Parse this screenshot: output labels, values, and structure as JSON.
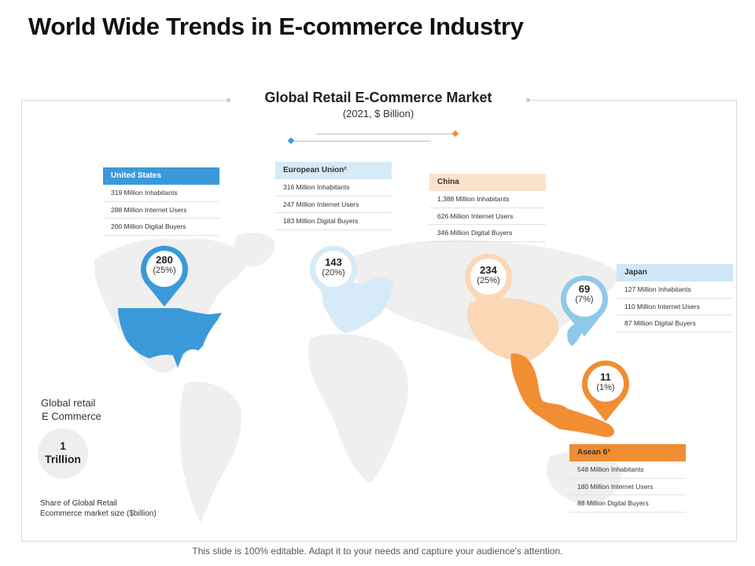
{
  "slide": {
    "title": "World Wide Trends in E-commerce Industry",
    "footer": "This slide is 100% editable. Adapt it to your needs and capture your audience's attention."
  },
  "chart": {
    "title": "Global Retail E-Commerce Market",
    "subtitle": "(2021, $ Billion)"
  },
  "colors": {
    "us_blue": "#3a9ad9",
    "eu_light_blue": "#d6eaf8",
    "china_peach": "#fbd7b5",
    "japan_blue": "#8ec8ea",
    "asean_orange": "#f18d33",
    "map_gray": "#efefef"
  },
  "regions": {
    "us": {
      "name": "United States",
      "inhabitants": "319 Million Inhabitants",
      "internet_users": "288 Million Internet Users",
      "digital_buyers": "200 Million Digital Buyers",
      "value": "280",
      "share": "(25%)"
    },
    "eu": {
      "name": "European Union²",
      "inhabitants": "316 Million Inhabitants",
      "internet_users": "247 Million Internet Users",
      "digital_buyers": "183 Million Digital Buyers",
      "value": "143",
      "share": "(20%)"
    },
    "china": {
      "name": "China",
      "inhabitants": "1,388 Million Inhabitants",
      "internet_users": "626 Million Internet Users",
      "digital_buyers": "346 Million Digital Buyers",
      "value": "234",
      "share": "(25%)"
    },
    "japan": {
      "name": "Japan",
      "inhabitants": "127 Million Inhabitants",
      "internet_users": "110 Million Internet Users",
      "digital_buyers": "87 Million Digital Buyers",
      "value": "69",
      "share": "(7%)"
    },
    "asean": {
      "name": "Asean 6³",
      "inhabitants": "548 Million Inhabitants",
      "internet_users": "180 Million Internet Users",
      "digital_buyers": "88 Million Digital Buyers",
      "value": "11",
      "share": "(1%)"
    }
  },
  "global": {
    "label_line1": "Global retail",
    "label_line2": "E Commerce",
    "value_line1": "1",
    "value_line2": "Trillion",
    "note_line1": "Share of Global Retail",
    "note_line2": "Ecommerce market size ($billion)"
  }
}
